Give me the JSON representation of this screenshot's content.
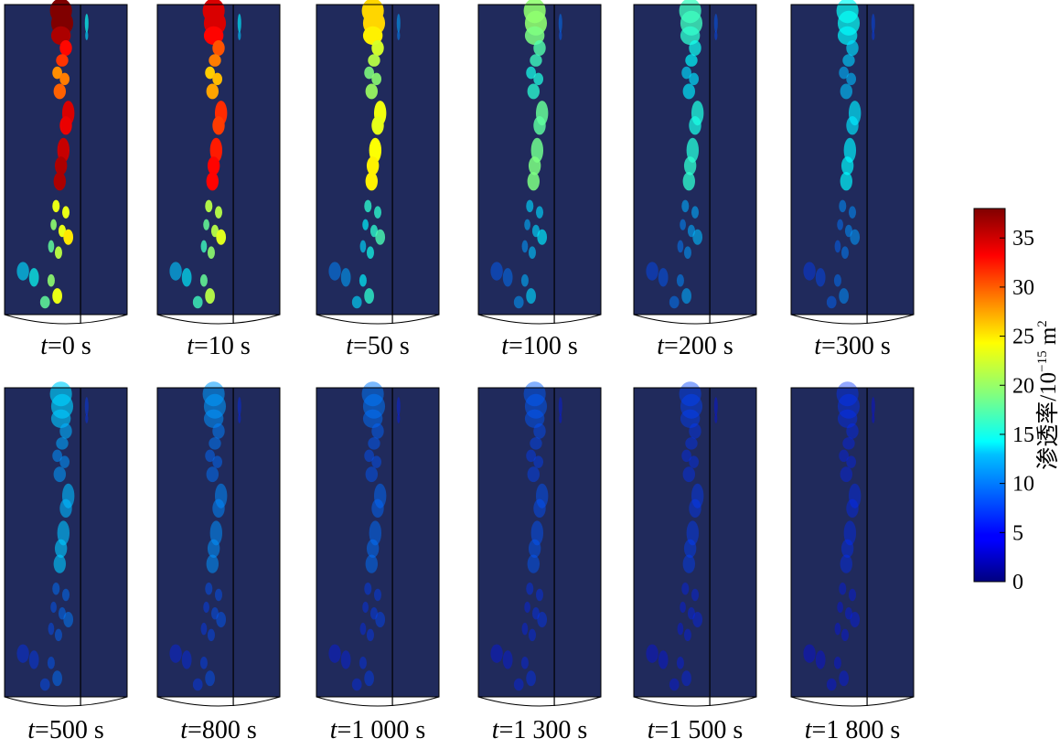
{
  "chart_data": {
    "type": "heatmap",
    "panels": [
      {
        "time": "0 s",
        "intensity": 1.0
      },
      {
        "time": "10 s",
        "intensity": 0.9
      },
      {
        "time": "50 s",
        "intensity": 0.62
      },
      {
        "time": "100 s",
        "intensity": 0.45
      },
      {
        "time": "200 s",
        "intensity": 0.36
      },
      {
        "time": "300 s",
        "intensity": 0.3
      },
      {
        "time": "500 s",
        "intensity": 0.24
      },
      {
        "time": "800 s",
        "intensity": 0.18
      },
      {
        "time": "1 000 s",
        "intensity": 0.14
      },
      {
        "time": "1 300 s",
        "intensity": 0.11
      },
      {
        "time": "1 500 s",
        "intensity": 0.08
      },
      {
        "time": "1 800 s",
        "intensity": 0.06
      }
    ],
    "time_variable": "t",
    "colorbar": {
      "label_main": "渗透率/10",
      "label_exp": "−15",
      "label_unit": " m",
      "label_unit_exp": "2",
      "ticks": [
        0,
        5,
        10,
        15,
        20,
        25,
        30,
        35
      ],
      "range": [
        0,
        38
      ],
      "colormap": "jet"
    },
    "colors": {
      "background": "#202a5c",
      "outline": "#000000"
    }
  }
}
